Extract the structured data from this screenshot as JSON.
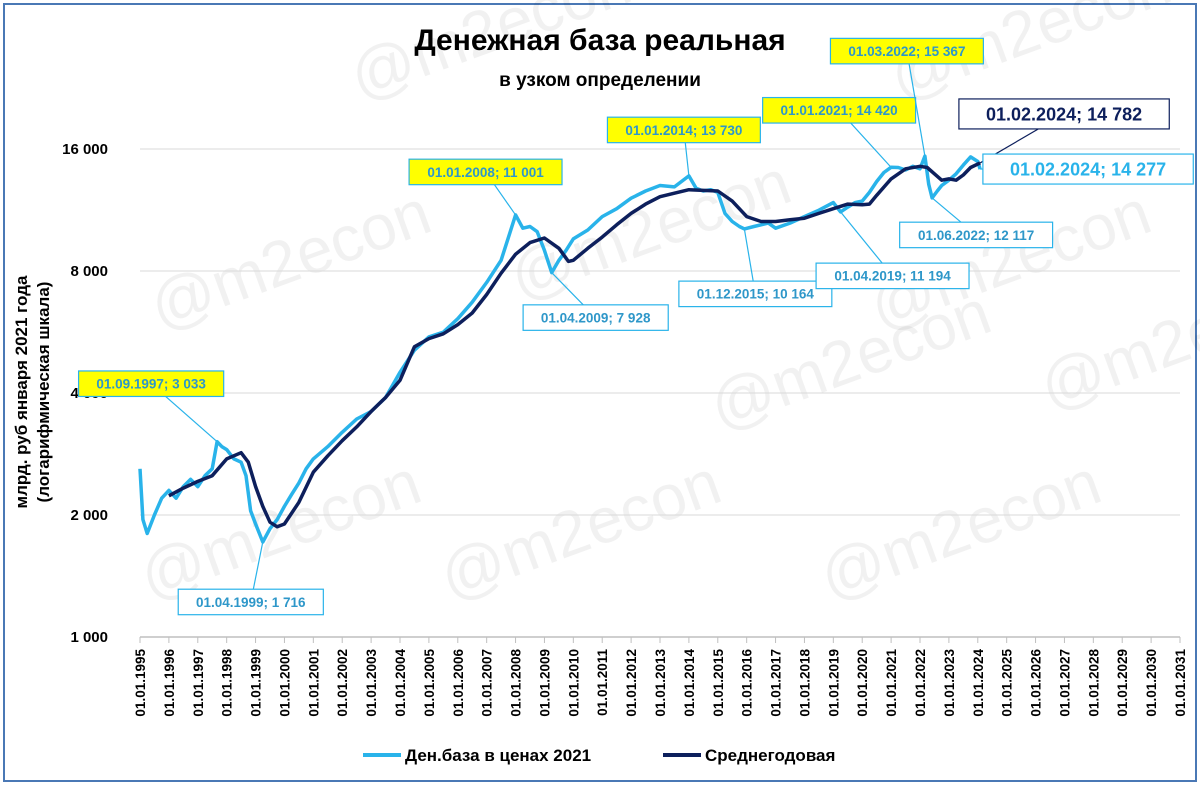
{
  "chart_data": {
    "type": "line",
    "title": "Денежная база реальная",
    "subtitle": "в узком определении",
    "ylabel_line1": "млрд. руб января 2021 года",
    "ylabel_line2": "(логарифмическая шкала)",
    "yscale": "log2",
    "ylim": [
      1000,
      16000
    ],
    "yticks": [
      {
        "value": 1000,
        "label": "1 000"
      },
      {
        "value": 2000,
        "label": "2 000"
      },
      {
        "value": 4000,
        "label": "4 000"
      },
      {
        "value": 8000,
        "label": "8 000"
      },
      {
        "value": 16000,
        "label": "16 000"
      }
    ],
    "xlim": [
      1995,
      2031
    ],
    "xticks": [
      "01.01.1995",
      "01.01.1996",
      "01.01.1997",
      "01.01.1998",
      "01.01.1999",
      "01.01.2000",
      "01.01.2001",
      "01.01.2002",
      "01.01.2003",
      "01.01.2004",
      "01.01.2005",
      "01.01.2006",
      "01.01.2007",
      "01.01.2008",
      "01.01.2009",
      "01.01.2010",
      "01.01.2011",
      "01.01.2012",
      "01.01.2013",
      "01.01.2014",
      "01.01.2015",
      "01.01.2016",
      "01.01.2017",
      "01.01.2018",
      "01.01.2019",
      "01.01.2020",
      "01.01.2021",
      "01.01.2022",
      "01.01.2023",
      "01.01.2024",
      "01.01.2025",
      "01.01.2026",
      "01.01.2027",
      "01.01.2028",
      "01.01.2029",
      "01.01.2030",
      "01.01.2031"
    ],
    "grid": true,
    "legend_position": "bottom",
    "series": [
      {
        "name": "Ден.база в ценах 2021",
        "color": "#29b3ea",
        "points": [
          [
            1995.0,
            2600
          ],
          [
            1995.1,
            1950
          ],
          [
            1995.25,
            1800
          ],
          [
            1995.5,
            2000
          ],
          [
            1995.75,
            2200
          ],
          [
            1996.0,
            2300
          ],
          [
            1996.25,
            2200
          ],
          [
            1996.5,
            2350
          ],
          [
            1996.75,
            2450
          ],
          [
            1997.0,
            2350
          ],
          [
            1997.25,
            2500
          ],
          [
            1997.5,
            2600
          ],
          [
            1997.67,
            3033
          ],
          [
            1997.83,
            2950
          ],
          [
            1998.0,
            2900
          ],
          [
            1998.25,
            2750
          ],
          [
            1998.5,
            2700
          ],
          [
            1998.67,
            2500
          ],
          [
            1998.83,
            2050
          ],
          [
            1999.0,
            1900
          ],
          [
            1999.25,
            1716
          ],
          [
            1999.5,
            1850
          ],
          [
            1999.75,
            1950
          ],
          [
            2000.0,
            2100
          ],
          [
            2000.25,
            2250
          ],
          [
            2000.5,
            2400
          ],
          [
            2000.75,
            2600
          ],
          [
            2001.0,
            2750
          ],
          [
            2001.5,
            2950
          ],
          [
            2002.0,
            3200
          ],
          [
            2002.5,
            3450
          ],
          [
            2003.0,
            3600
          ],
          [
            2003.5,
            3900
          ],
          [
            2004.0,
            4500
          ],
          [
            2004.5,
            5100
          ],
          [
            2005.0,
            5500
          ],
          [
            2005.5,
            5650
          ],
          [
            2006.0,
            6100
          ],
          [
            2006.5,
            6700
          ],
          [
            2007.0,
            7500
          ],
          [
            2007.5,
            8500
          ],
          [
            2008.0,
            11001
          ],
          [
            2008.25,
            10200
          ],
          [
            2008.5,
            10300
          ],
          [
            2008.75,
            10000
          ],
          [
            2009.0,
            9000
          ],
          [
            2009.25,
            7928
          ],
          [
            2009.5,
            8500
          ],
          [
            2009.75,
            9000
          ],
          [
            2010.0,
            9600
          ],
          [
            2010.5,
            10100
          ],
          [
            2011.0,
            10900
          ],
          [
            2011.5,
            11400
          ],
          [
            2012.0,
            12100
          ],
          [
            2012.5,
            12600
          ],
          [
            2013.0,
            13000
          ],
          [
            2013.5,
            12900
          ],
          [
            2014.0,
            13730
          ],
          [
            2014.25,
            12800
          ],
          [
            2014.5,
            12600
          ],
          [
            2014.75,
            12700
          ],
          [
            2015.0,
            12500
          ],
          [
            2015.25,
            11100
          ],
          [
            2015.5,
            10600
          ],
          [
            2015.75,
            10300
          ],
          [
            2015.92,
            10164
          ],
          [
            2016.25,
            10300
          ],
          [
            2016.5,
            10400
          ],
          [
            2016.75,
            10500
          ],
          [
            2017.0,
            10200
          ],
          [
            2017.5,
            10500
          ],
          [
            2018.0,
            10900
          ],
          [
            2018.5,
            11300
          ],
          [
            2019.0,
            11800
          ],
          [
            2019.25,
            11194
          ],
          [
            2019.5,
            11500
          ],
          [
            2019.75,
            11800
          ],
          [
            2020.0,
            11900
          ],
          [
            2020.25,
            12500
          ],
          [
            2020.5,
            13300
          ],
          [
            2020.75,
            14000
          ],
          [
            2021.0,
            14420
          ],
          [
            2021.25,
            14400
          ],
          [
            2021.5,
            14200
          ],
          [
            2021.75,
            14500
          ],
          [
            2022.0,
            14300
          ],
          [
            2022.17,
            15367
          ],
          [
            2022.3,
            13100
          ],
          [
            2022.42,
            12117
          ],
          [
            2022.6,
            12600
          ],
          [
            2022.75,
            13000
          ],
          [
            2023.0,
            13400
          ],
          [
            2023.25,
            13900
          ],
          [
            2023.5,
            14600
          ],
          [
            2023.75,
            15300
          ],
          [
            2024.0,
            14900
          ],
          [
            2024.08,
            14277
          ]
        ]
      },
      {
        "name": "Среднегодовая",
        "color": "#0d1f5c",
        "points": [
          [
            1996.0,
            2230
          ],
          [
            1996.5,
            2330
          ],
          [
            1997.0,
            2420
          ],
          [
            1997.5,
            2500
          ],
          [
            1998.0,
            2750
          ],
          [
            1998.5,
            2850
          ],
          [
            1998.75,
            2700
          ],
          [
            1999.0,
            2350
          ],
          [
            1999.25,
            2100
          ],
          [
            1999.5,
            1920
          ],
          [
            1999.75,
            1870
          ],
          [
            2000.0,
            1900
          ],
          [
            2000.5,
            2150
          ],
          [
            2001.0,
            2550
          ],
          [
            2001.5,
            2800
          ],
          [
            2002.0,
            3050
          ],
          [
            2002.5,
            3300
          ],
          [
            2003.0,
            3600
          ],
          [
            2003.5,
            3900
          ],
          [
            2004.0,
            4300
          ],
          [
            2004.5,
            5200
          ],
          [
            2005.0,
            5450
          ],
          [
            2005.5,
            5600
          ],
          [
            2006.0,
            5900
          ],
          [
            2006.5,
            6300
          ],
          [
            2007.0,
            7000
          ],
          [
            2007.5,
            7900
          ],
          [
            2008.0,
            8800
          ],
          [
            2008.5,
            9400
          ],
          [
            2009.0,
            9650
          ],
          [
            2009.5,
            9100
          ],
          [
            2009.83,
            8450
          ],
          [
            2010.0,
            8500
          ],
          [
            2010.5,
            9100
          ],
          [
            2011.0,
            9700
          ],
          [
            2011.5,
            10400
          ],
          [
            2012.0,
            11100
          ],
          [
            2012.5,
            11700
          ],
          [
            2013.0,
            12200
          ],
          [
            2013.5,
            12450
          ],
          [
            2014.0,
            12700
          ],
          [
            2014.5,
            12650
          ],
          [
            2015.0,
            12600
          ],
          [
            2015.5,
            11900
          ],
          [
            2016.0,
            10900
          ],
          [
            2016.5,
            10600
          ],
          [
            2017.0,
            10600
          ],
          [
            2017.5,
            10700
          ],
          [
            2018.0,
            10800
          ],
          [
            2018.5,
            11100
          ],
          [
            2019.0,
            11400
          ],
          [
            2019.5,
            11700
          ],
          [
            2020.0,
            11650
          ],
          [
            2020.25,
            11700
          ],
          [
            2020.5,
            12300
          ],
          [
            2021.0,
            13500
          ],
          [
            2021.5,
            14300
          ],
          [
            2022.0,
            14500
          ],
          [
            2022.25,
            14400
          ],
          [
            2022.5,
            13900
          ],
          [
            2022.75,
            13400
          ],
          [
            2023.0,
            13500
          ],
          [
            2023.25,
            13400
          ],
          [
            2023.5,
            13800
          ],
          [
            2023.75,
            14400
          ],
          [
            2024.08,
            14782
          ]
        ]
      }
    ],
    "annotations": [
      {
        "text": "01.09.1997; 3 033",
        "x": 1997.67,
        "y": 3033,
        "style": "yellow"
      },
      {
        "text": "01.04.1999; 1 716",
        "x": 1999.25,
        "y": 1716,
        "style": "white"
      },
      {
        "text": "01.01.2008; 11 001",
        "x": 2008.0,
        "y": 11001,
        "style": "yellow"
      },
      {
        "text": "01.04.2009; 7 928",
        "x": 2009.25,
        "y": 7928,
        "style": "white"
      },
      {
        "text": "01.01.2014; 13 730",
        "x": 2014.0,
        "y": 13730,
        "style": "yellow"
      },
      {
        "text": "01.12.2015; 10 164",
        "x": 2015.92,
        "y": 10164,
        "style": "white"
      },
      {
        "text": "01.04.2019; 11 194",
        "x": 2019.25,
        "y": 11194,
        "style": "white"
      },
      {
        "text": "01.01.2021; 14 420",
        "x": 2021.0,
        "y": 14420,
        "style": "yellow"
      },
      {
        "text": "01.03.2022; 15 367",
        "x": 2022.17,
        "y": 15367,
        "style": "yellow"
      },
      {
        "text": "01.06.2022; 12 117",
        "x": 2022.42,
        "y": 12117,
        "style": "white"
      },
      {
        "text": "01.02.2024;  14 782",
        "x": 2024.08,
        "y": 14782,
        "style": "dark"
      },
      {
        "text": "01.02.2024;  14 277",
        "x": 2024.08,
        "y": 14277,
        "style": "blue-large"
      }
    ],
    "watermark": "@m2econ"
  }
}
